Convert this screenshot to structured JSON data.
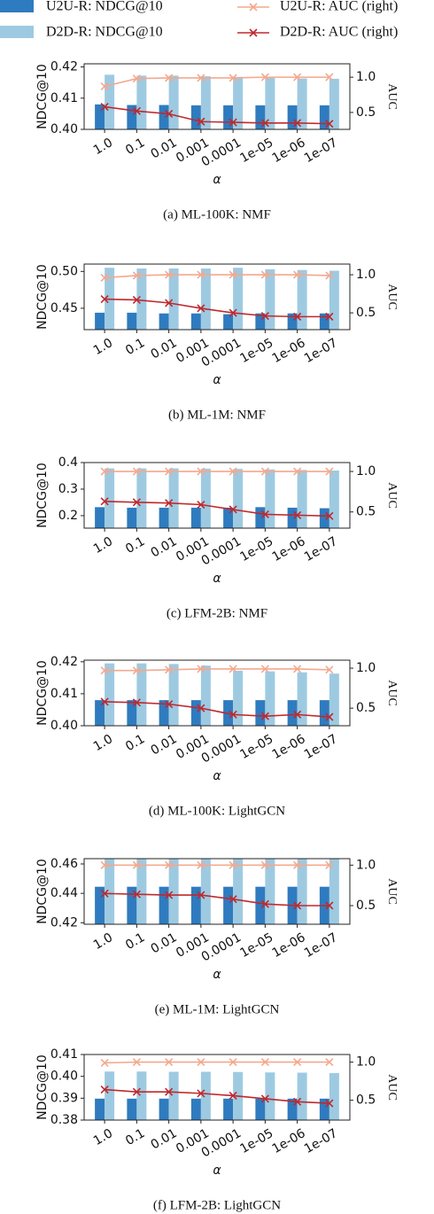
{
  "chart_data": [
    {
      "type": "bar_line",
      "title": "(a)  ML-100K: NMF",
      "xlabel": "α",
      "ylabel": "NDCG@10",
      "y2label": "AUC",
      "categories": [
        "1.0",
        "0.1",
        "0.01",
        "0.001",
        "0.0001",
        "1e-05",
        "1e-06",
        "1e-07"
      ],
      "ylim": [
        0.4,
        0.421
      ],
      "yticks": [
        {
          "value": 0.4,
          "label": "0.40"
        },
        0.41,
        0.42
      ],
      "y2lim": [
        0.26,
        1.19
      ],
      "y2ticks": [
        0.5,
        {
          "value": 1,
          "label": "1.0"
        }
      ],
      "series": [
        {
          "name": "U2U-R: NDCG@10",
          "kind": "bar",
          "color": "#2f7bbf",
          "values": [
            0.408,
            0.4078,
            0.4078,
            0.4077,
            0.4077,
            0.4077,
            0.4077,
            0.4077
          ]
        },
        {
          "name": "D2D-R: NDCG@10",
          "kind": "bar",
          "color": "#9ecae1",
          "values": [
            0.4175,
            0.4172,
            0.4172,
            0.417,
            0.4168,
            0.4165,
            0.4163,
            0.4162
          ]
        },
        {
          "name": "U2U-R: AUC (right)",
          "kind": "line",
          "axis": "y2",
          "color": "#f4a88e",
          "values": [
            0.87,
            0.98,
            0.99,
            0.99,
            0.99,
            1.0,
            1.0,
            1.0
          ]
        },
        {
          "name": "D2D-R: AUC (right)",
          "kind": "line",
          "axis": "y2",
          "color": "#c0282d",
          "values": [
            0.58,
            0.52,
            0.48,
            0.37,
            0.36,
            0.35,
            0.35,
            0.34
          ]
        }
      ]
    },
    {
      "type": "bar_line",
      "title": "(b)  ML-1M: NMF",
      "xlabel": "α",
      "ylabel": "NDCG@10",
      "y2label": "AUC",
      "categories": [
        "1.0",
        "0.1",
        "0.01",
        "0.001",
        "0.0001",
        "1e-05",
        "1e-06",
        "1e-07"
      ],
      "ylim": [
        0.421,
        0.51
      ],
      "yticks": [
        0.45,
        {
          "value": 0.5,
          "label": "0.50"
        }
      ],
      "y2lim": [
        0.28,
        1.14
      ],
      "y2ticks": [
        0.5,
        {
          "value": 1,
          "label": "1.0"
        }
      ],
      "series": [
        {
          "kind": "bar",
          "color": "#2f7bbf",
          "values": [
            0.444,
            0.444,
            0.443,
            0.443,
            0.442,
            0.443,
            0.443,
            0.443
          ]
        },
        {
          "kind": "bar",
          "color": "#9ecae1",
          "values": [
            0.505,
            0.504,
            0.504,
            0.504,
            0.505,
            0.503,
            0.502,
            0.501
          ]
        },
        {
          "kind": "line",
          "axis": "y2",
          "color": "#f4a88e",
          "values": [
            0.96,
            0.99,
            1.0,
            1.0,
            1.0,
            1.0,
            1.0,
            0.99
          ]
        },
        {
          "kind": "line",
          "axis": "y2",
          "color": "#c0282d",
          "values": [
            0.68,
            0.67,
            0.63,
            0.56,
            0.5,
            0.46,
            0.45,
            0.45
          ]
        }
      ]
    },
    {
      "type": "bar_line",
      "title": "(c)  LFM-2B: NMF",
      "xlabel": "α",
      "ylabel": "NDCG@10",
      "y2label": "AUC",
      "categories": [
        "1.0",
        "0.1",
        "0.01",
        "0.001",
        "0.0001",
        "1e-05",
        "1e-06",
        "1e-07"
      ],
      "ylim": [
        0.153,
        0.4
      ],
      "yticks": [
        0.2,
        0.3,
        0.4
      ],
      "y2lim": [
        0.3,
        1.11
      ],
      "y2ticks": [
        0.5,
        {
          "value": 1,
          "label": "1.0"
        }
      ],
      "series": [
        {
          "kind": "bar",
          "color": "#2f7bbf",
          "values": [
            0.232,
            0.23,
            0.23,
            0.23,
            0.23,
            0.232,
            0.23,
            0.228
          ]
        },
        {
          "kind": "bar",
          "color": "#9ecae1",
          "values": [
            0.378,
            0.378,
            0.378,
            0.377,
            0.376,
            0.374,
            0.372,
            0.37
          ]
        },
        {
          "kind": "line",
          "axis": "y2",
          "color": "#f4a88e",
          "values": [
            1.0,
            1.0,
            1.0,
            1.0,
            1.0,
            1.0,
            1.0,
            1.0
          ]
        },
        {
          "kind": "line",
          "axis": "y2",
          "color": "#c0282d",
          "values": [
            0.63,
            0.62,
            0.61,
            0.59,
            0.53,
            0.47,
            0.46,
            0.45
          ]
        }
      ]
    },
    {
      "type": "bar_line",
      "title": "(d)  ML-100K: LightGCN",
      "xlabel": "α",
      "ylabel": "NDCG@10",
      "y2label": "AUC",
      "categories": [
        "1.0",
        "0.1",
        "0.01",
        "0.001",
        "0.0001",
        "1e-05",
        "1e-06",
        "1e-07"
      ],
      "ylim": [
        0.4,
        0.4205
      ],
      "yticks": [
        {
          "value": 0.4,
          "label": "0.40"
        },
        0.41,
        0.42
      ],
      "y2lim": [
        0.28,
        1.1
      ],
      "y2ticks": [
        0.5,
        {
          "value": 1,
          "label": "1.0"
        }
      ],
      "series": [
        {
          "kind": "bar",
          "color": "#2f7bbf",
          "values": [
            0.408,
            0.408,
            0.408,
            0.408,
            0.408,
            0.408,
            0.408,
            0.408
          ]
        },
        {
          "kind": "bar",
          "color": "#9ecae1",
          "values": [
            0.4195,
            0.4195,
            0.4193,
            0.4188,
            0.4172,
            0.417,
            0.4167,
            0.4163
          ]
        },
        {
          "kind": "line",
          "axis": "y2",
          "color": "#f4a88e",
          "values": [
            0.97,
            0.97,
            0.98,
            0.99,
            0.99,
            0.99,
            0.99,
            0.98
          ]
        },
        {
          "kind": "line",
          "axis": "y2",
          "color": "#c0282d",
          "values": [
            0.58,
            0.57,
            0.55,
            0.5,
            0.42,
            0.4,
            0.42,
            0.39
          ]
        }
      ]
    },
    {
      "type": "bar_line",
      "title": "(e)  ML-1M: LightGCN",
      "xlabel": "α",
      "ylabel": "NDCG@10",
      "y2label": "AUC",
      "categories": [
        "1.0",
        "0.1",
        "0.01",
        "0.001",
        "0.0001",
        "1e-05",
        "1e-06",
        "1e-07"
      ],
      "ylim": [
        0.419,
        0.4636
      ],
      "yticks": [
        0.42,
        0.44,
        0.46
      ],
      "y2lim": [
        0.27,
        1.08
      ],
      "y2ticks": [
        0.5,
        {
          "value": 1,
          "label": "1.0"
        }
      ],
      "series": [
        {
          "kind": "bar",
          "color": "#2f7bbf",
          "values": [
            0.4445,
            0.4445,
            0.4445,
            0.4445,
            0.4445,
            0.4445,
            0.4445,
            0.4445
          ]
        },
        {
          "kind": "bar",
          "color": "#9ecae1",
          "values": [
            0.4665,
            0.4665,
            0.4663,
            0.4662,
            0.466,
            0.4655,
            0.4645,
            0.4635
          ]
        },
        {
          "kind": "line",
          "axis": "y2",
          "color": "#f4a88e",
          "values": [
            1.0,
            1.0,
            1.0,
            1.0,
            1.0,
            1.0,
            1.0,
            1.0
          ]
        },
        {
          "kind": "line",
          "axis": "y2",
          "color": "#c0282d",
          "values": [
            0.65,
            0.64,
            0.63,
            0.63,
            0.58,
            0.52,
            0.5,
            0.5
          ]
        }
      ]
    },
    {
      "type": "bar_line",
      "title": "(f)  LFM-2B: LightGCN",
      "xlabel": "α",
      "ylabel": "NDCG@10",
      "y2label": "AUC",
      "categories": [
        "1.0",
        "0.1",
        "0.01",
        "0.001",
        "0.0001",
        "1e-05",
        "1e-06",
        "1e-07"
      ],
      "ylim": [
        0.38,
        0.41
      ],
      "yticks": [
        0.38,
        0.39,
        {
          "value": 0.4,
          "label": "0.40"
        },
        0.41
      ],
      "y2lim": [
        0.24,
        1.1
      ],
      "y2ticks": [
        0.5,
        {
          "value": 1,
          "label": "1.0"
        }
      ],
      "series": [
        {
          "kind": "bar",
          "color": "#2f7bbf",
          "values": [
            0.3898,
            0.3898,
            0.3898,
            0.3898,
            0.3898,
            0.3898,
            0.3898,
            0.3898
          ]
        },
        {
          "kind": "bar",
          "color": "#9ecae1",
          "values": [
            0.4022,
            0.4022,
            0.4021,
            0.4021,
            0.402,
            0.4018,
            0.4017,
            0.4015
          ]
        },
        {
          "kind": "line",
          "axis": "y2",
          "color": "#f4a88e",
          "values": [
            0.99,
            1.0,
            1.0,
            1.0,
            1.0,
            1.0,
            1.0,
            1.0
          ]
        },
        {
          "kind": "line",
          "axis": "y2",
          "color": "#c0282d",
          "values": [
            0.64,
            0.61,
            0.61,
            0.59,
            0.56,
            0.52,
            0.48,
            0.46
          ]
        }
      ]
    }
  ]
}
